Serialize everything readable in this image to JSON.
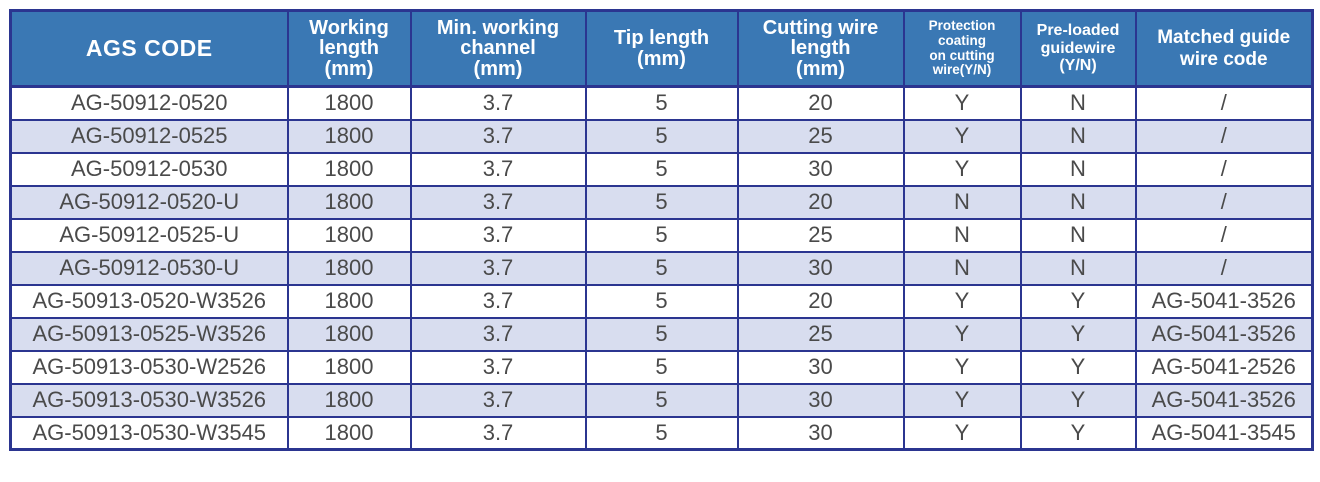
{
  "colors": {
    "header_bg": "#3a78b4",
    "border": "#2b3590",
    "row_alt_bg": "#d8ddef",
    "text": "#4a4a4a",
    "header_text": "#ffffff"
  },
  "table": {
    "columns": [
      {
        "label": "AGS CODE"
      },
      {
        "label": "Working\nlength\n(mm)"
      },
      {
        "label": "Min. working\nchannel\n(mm)"
      },
      {
        "label": "Tip length\n(mm)"
      },
      {
        "label": "Cutting wire\nlength\n(mm)"
      },
      {
        "label": "Protection\ncoating\non cutting\nwire(Y/N)"
      },
      {
        "label": "Pre-loaded\nguidewire\n(Y/N)"
      },
      {
        "label": "Matched guide\nwire code"
      }
    ],
    "rows": [
      {
        "cells": [
          "AG-50912-0520",
          "1800",
          "3.7",
          "5",
          "20",
          "Y",
          "N",
          "/"
        ]
      },
      {
        "cells": [
          "AG-50912-0525",
          "1800",
          "3.7",
          "5",
          "25",
          "Y",
          "N",
          "/"
        ]
      },
      {
        "cells": [
          "AG-50912-0530",
          "1800",
          "3.7",
          "5",
          "30",
          "Y",
          "N",
          "/"
        ]
      },
      {
        "cells": [
          "AG-50912-0520-U",
          "1800",
          "3.7",
          "5",
          "20",
          "N",
          "N",
          "/"
        ]
      },
      {
        "cells": [
          "AG-50912-0525-U",
          "1800",
          "3.7",
          "5",
          "25",
          "N",
          "N",
          "/"
        ]
      },
      {
        "cells": [
          "AG-50912-0530-U",
          "1800",
          "3.7",
          "5",
          "30",
          "N",
          "N",
          "/"
        ]
      },
      {
        "cells": [
          "AG-50913-0520-W3526",
          "1800",
          "3.7",
          "5",
          "20",
          "Y",
          "Y",
          "AG-5041-3526"
        ]
      },
      {
        "cells": [
          "AG-50913-0525-W3526",
          "1800",
          "3.7",
          "5",
          "25",
          "Y",
          "Y",
          "AG-5041-3526"
        ]
      },
      {
        "cells": [
          "AG-50913-0530-W2526",
          "1800",
          "3.7",
          "5",
          "30",
          "Y",
          "Y",
          "AG-5041-2526"
        ]
      },
      {
        "cells": [
          "AG-50913-0530-W3526",
          "1800",
          "3.7",
          "5",
          "30",
          "Y",
          "Y",
          "AG-5041-3526"
        ]
      },
      {
        "cells": [
          "AG-50913-0530-W3545",
          "1800",
          "3.7",
          "5",
          "30",
          "Y",
          "Y",
          "AG-5041-3545"
        ]
      }
    ]
  }
}
